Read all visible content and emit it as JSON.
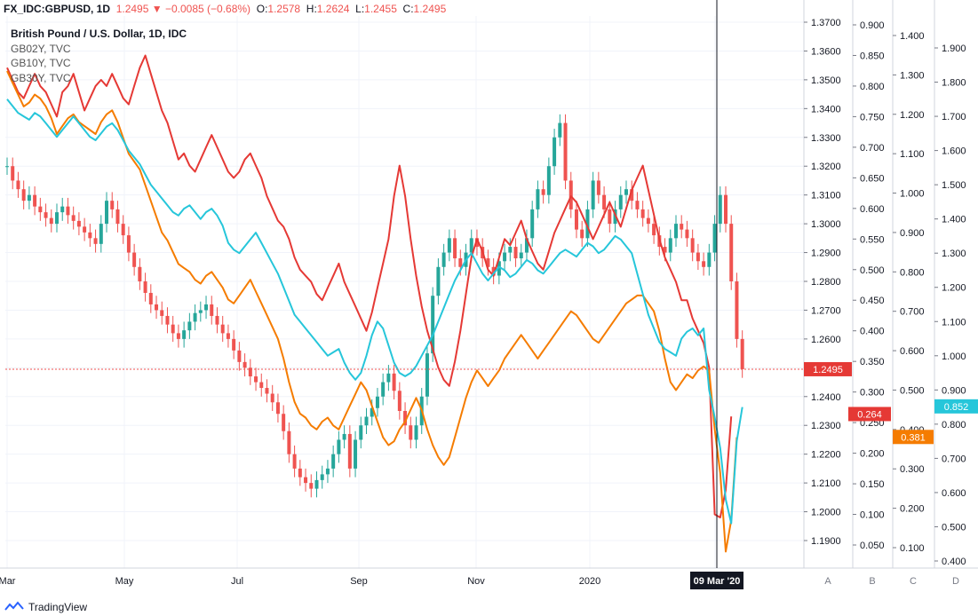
{
  "header": {
    "symbol": "FX_IDC:GBPUSD, 1D",
    "last": "1.2495",
    "arrow": "▼",
    "change": "−0.0085 (−0.68%)",
    "open_label": "O:",
    "open": "1.2578",
    "high_label": "H:",
    "high": "1.2624",
    "low_label": "L:",
    "low": "1.2455",
    "close_label": "C:",
    "close": "1.2495"
  },
  "legend": {
    "main": "British Pound / U.S. Dollar, 1D, IDC",
    "s1": "GB02Y, TVC",
    "s2": "GB10Y, TVC",
    "s3": "GB30Y, TVC"
  },
  "footer": {
    "brand": "TradingView"
  },
  "chart_data": {
    "type": "line",
    "x_ticks": [
      "Mar",
      "May",
      "Jul",
      "Sep",
      "Nov",
      "2020",
      "Mar"
    ],
    "crosshair_label": "09 Mar '20",
    "axis_buttons": [
      "A",
      "B",
      "C",
      "D"
    ],
    "axes": {
      "A": {
        "ticks": [
          "1.3700",
          "1.3600",
          "1.3500",
          "1.3400",
          "1.3300",
          "1.3200",
          "1.3100",
          "1.3000",
          "1.2900",
          "1.2800",
          "1.2700",
          "1.2600",
          "1.2500",
          "1.2400",
          "1.2300",
          "1.2200",
          "1.2100",
          "1.2000",
          "1.1900"
        ],
        "last": "1.2495"
      },
      "B": {
        "ticks": [
          "0.900",
          "0.850",
          "0.800",
          "0.750",
          "0.700",
          "0.650",
          "0.600",
          "0.550",
          "0.500",
          "0.450",
          "0.400",
          "0.350",
          "0.300",
          "0.250",
          "0.200",
          "0.150",
          "0.100",
          "0.050"
        ],
        "last": "0.264"
      },
      "C": {
        "ticks": [
          "1.400",
          "1.300",
          "1.200",
          "1.100",
          "1.000",
          "0.900",
          "0.800",
          "0.700",
          "0.600",
          "0.500",
          "0.400",
          "0.300",
          "0.200",
          "0.100"
        ],
        "last": "0.381"
      },
      "D": {
        "ticks": [
          "1.900",
          "1.800",
          "1.700",
          "1.600",
          "1.500",
          "1.400",
          "1.300",
          "1.200",
          "1.100",
          "1.000",
          "0.900",
          "0.800",
          "0.700",
          "0.600",
          "0.500",
          "0.400"
        ],
        "last": "0.852"
      }
    },
    "colors": {
      "up": "#26a69a",
      "down": "#ef5350",
      "GB02Y": "#e53935",
      "GB10Y": "#f57c00",
      "GB30Y": "#26c6da",
      "grid": "#f0f3fa"
    },
    "series": [
      {
        "name": "GB02Y, TVC",
        "axis": "B",
        "color": "#e53935",
        "values": [
          0.83,
          0.81,
          0.79,
          0.78,
          0.8,
          0.82,
          0.8,
          0.79,
          0.77,
          0.75,
          0.79,
          0.8,
          0.82,
          0.79,
          0.76,
          0.78,
          0.8,
          0.81,
          0.8,
          0.82,
          0.8,
          0.78,
          0.77,
          0.8,
          0.83,
          0.85,
          0.82,
          0.79,
          0.76,
          0.74,
          0.71,
          0.68,
          0.69,
          0.67,
          0.66,
          0.68,
          0.7,
          0.72,
          0.7,
          0.68,
          0.66,
          0.65,
          0.66,
          0.68,
          0.69,
          0.67,
          0.65,
          0.62,
          0.6,
          0.58,
          0.57,
          0.55,
          0.52,
          0.5,
          0.49,
          0.48,
          0.46,
          0.45,
          0.47,
          0.49,
          0.51,
          0.48,
          0.46,
          0.44,
          0.42,
          0.4,
          0.43,
          0.47,
          0.51,
          0.55,
          0.62,
          0.67,
          0.62,
          0.55,
          0.49,
          0.44,
          0.4,
          0.37,
          0.34,
          0.32,
          0.31,
          0.35,
          0.4,
          0.46,
          0.52,
          0.55,
          0.53,
          0.5,
          0.49,
          0.52,
          0.55,
          0.54,
          0.56,
          0.58,
          0.55,
          0.53,
          0.51,
          0.5,
          0.53,
          0.56,
          0.58,
          0.6,
          0.62,
          0.61,
          0.59,
          0.57,
          0.55,
          0.57,
          0.59,
          0.61,
          0.59,
          0.57,
          0.6,
          0.63,
          0.65,
          0.67,
          0.63,
          0.59,
          0.55,
          0.52,
          0.5,
          0.48,
          0.45,
          0.45,
          0.42,
          0.4,
          0.38,
          0.34,
          0.1,
          0.095,
          0.14,
          0.26
        ]
      },
      {
        "name": "GB10Y, TVC",
        "axis": "C",
        "color": "#f57c00",
        "values": [
          1.31,
          1.28,
          1.25,
          1.22,
          1.23,
          1.25,
          1.24,
          1.22,
          1.19,
          1.15,
          1.17,
          1.19,
          1.2,
          1.18,
          1.17,
          1.16,
          1.15,
          1.18,
          1.2,
          1.21,
          1.18,
          1.14,
          1.1,
          1.08,
          1.06,
          1.02,
          0.98,
          0.94,
          0.9,
          0.88,
          0.85,
          0.82,
          0.81,
          0.8,
          0.78,
          0.77,
          0.79,
          0.8,
          0.78,
          0.76,
          0.73,
          0.72,
          0.74,
          0.76,
          0.78,
          0.75,
          0.72,
          0.69,
          0.66,
          0.63,
          0.58,
          0.52,
          0.47,
          0.44,
          0.43,
          0.41,
          0.4,
          0.42,
          0.43,
          0.41,
          0.4,
          0.43,
          0.46,
          0.49,
          0.52,
          0.5,
          0.46,
          0.42,
          0.38,
          0.36,
          0.37,
          0.4,
          0.42,
          0.45,
          0.48,
          0.45,
          0.4,
          0.36,
          0.33,
          0.31,
          0.33,
          0.38,
          0.43,
          0.48,
          0.52,
          0.55,
          0.53,
          0.51,
          0.53,
          0.55,
          0.58,
          0.6,
          0.62,
          0.64,
          0.62,
          0.6,
          0.58,
          0.6,
          0.62,
          0.64,
          0.66,
          0.68,
          0.7,
          0.69,
          0.67,
          0.65,
          0.63,
          0.62,
          0.64,
          0.66,
          0.68,
          0.7,
          0.72,
          0.73,
          0.74,
          0.74,
          0.72,
          0.7,
          0.65,
          0.58,
          0.52,
          0.5,
          0.52,
          0.54,
          0.53,
          0.55,
          0.56,
          0.55,
          0.4,
          0.29,
          0.09,
          0.17,
          0.38
        ]
      },
      {
        "name": "GB30Y, TVC",
        "axis": "D",
        "color": "#26c6da",
        "values": [
          1.75,
          1.73,
          1.71,
          1.7,
          1.69,
          1.71,
          1.7,
          1.68,
          1.66,
          1.64,
          1.66,
          1.68,
          1.7,
          1.68,
          1.66,
          1.64,
          1.63,
          1.65,
          1.67,
          1.68,
          1.66,
          1.63,
          1.6,
          1.58,
          1.56,
          1.53,
          1.5,
          1.48,
          1.46,
          1.44,
          1.42,
          1.41,
          1.43,
          1.44,
          1.42,
          1.4,
          1.42,
          1.43,
          1.41,
          1.38,
          1.33,
          1.31,
          1.3,
          1.32,
          1.34,
          1.36,
          1.33,
          1.3,
          1.27,
          1.24,
          1.2,
          1.16,
          1.12,
          1.1,
          1.08,
          1.06,
          1.04,
          1.02,
          1.0,
          1.01,
          1.02,
          0.98,
          0.95,
          0.93,
          0.95,
          1.0,
          1.06,
          1.1,
          1.08,
          1.03,
          0.98,
          0.95,
          0.94,
          0.95,
          0.97,
          1.0,
          1.03,
          1.06,
          1.1,
          1.14,
          1.18,
          1.22,
          1.25,
          1.28,
          1.3,
          1.27,
          1.24,
          1.22,
          1.24,
          1.26,
          1.25,
          1.23,
          1.24,
          1.26,
          1.28,
          1.27,
          1.25,
          1.24,
          1.26,
          1.28,
          1.3,
          1.31,
          1.3,
          1.29,
          1.31,
          1.33,
          1.32,
          1.3,
          1.31,
          1.33,
          1.35,
          1.34,
          1.32,
          1.3,
          1.24,
          1.18,
          1.12,
          1.08,
          1.04,
          1.02,
          1.01,
          1.0,
          1.05,
          1.07,
          1.08,
          1.06,
          1.08,
          0.9,
          0.82,
          0.73,
          0.58,
          0.51,
          0.75,
          0.85
        ]
      },
      {
        "name": "British Pound / U.S. Dollar, 1D, IDC",
        "axis": "A",
        "kind": "candles",
        "values": [
          1.32,
          1.315,
          1.312,
          1.308,
          1.31,
          1.306,
          1.304,
          1.302,
          1.3,
          1.304,
          1.306,
          1.303,
          1.301,
          1.299,
          1.297,
          1.295,
          1.293,
          1.3,
          1.308,
          1.305,
          1.3,
          1.296,
          1.29,
          1.285,
          1.28,
          1.276,
          1.272,
          1.27,
          1.268,
          1.265,
          1.262,
          1.26,
          1.263,
          1.266,
          1.269,
          1.27,
          1.272,
          1.268,
          1.265,
          1.262,
          1.26,
          1.256,
          1.252,
          1.25,
          1.247,
          1.245,
          1.243,
          1.241,
          1.238,
          1.234,
          1.228,
          1.22,
          1.215,
          1.212,
          1.21,
          1.208,
          1.211,
          1.213,
          1.215,
          1.22,
          1.225,
          1.227,
          1.215,
          1.225,
          1.23,
          1.233,
          1.236,
          1.24,
          1.245,
          1.248,
          1.242,
          1.235,
          1.23,
          1.225,
          1.23,
          1.24,
          1.255,
          1.275,
          1.285,
          1.29,
          1.295,
          1.288,
          1.285,
          1.29,
          1.295,
          1.292,
          1.288,
          1.285,
          1.282,
          1.287,
          1.29,
          1.292,
          1.288,
          1.29,
          1.295,
          1.305,
          1.312,
          1.31,
          1.32,
          1.33,
          1.335,
          1.315,
          1.305,
          1.298,
          1.295,
          1.305,
          1.315,
          1.31,
          1.305,
          1.3,
          1.305,
          1.31,
          1.312,
          1.308,
          1.305,
          1.302,
          1.3,
          1.296,
          1.292,
          1.29,
          1.295,
          1.3,
          1.298,
          1.295,
          1.29,
          1.287,
          1.285,
          1.29,
          1.3,
          1.31,
          1.3,
          1.28,
          1.26,
          1.2495
        ]
      }
    ]
  }
}
